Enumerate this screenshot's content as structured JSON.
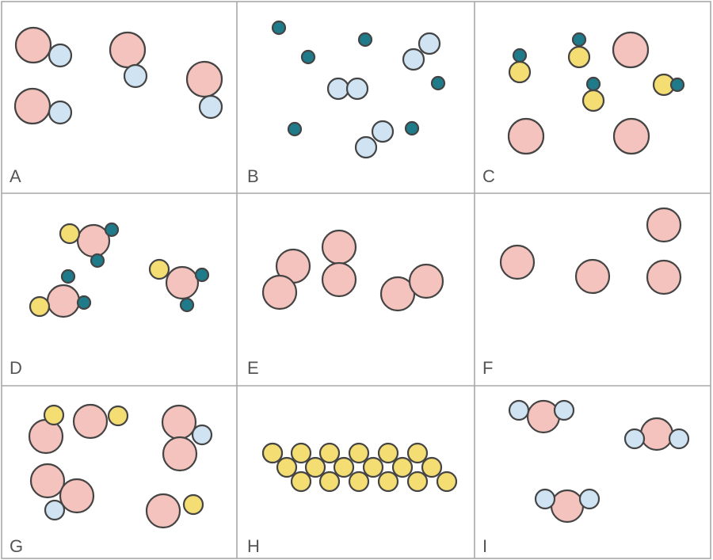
{
  "colors": {
    "pink": "#f5c3bd",
    "lightblue": "#cfe3f2",
    "yellow": "#f4dd72",
    "teal": "#1f7a8a",
    "border": "#a8a8a8",
    "outline": "#444444"
  },
  "panels": [
    {
      "label": "A",
      "particles": [
        {
          "atoms": [
            {
              "type": "pink"
            },
            {
              "type": "lightblue"
            }
          ]
        },
        {
          "atoms": [
            {
              "type": "pink"
            },
            {
              "type": "lightblue"
            }
          ]
        },
        {
          "atoms": [
            {
              "type": "pink"
            },
            {
              "type": "lightblue"
            }
          ]
        },
        {
          "atoms": [
            {
              "type": "pink"
            },
            {
              "type": "lightblue"
            }
          ]
        }
      ]
    },
    {
      "label": "B",
      "particles": [
        {
          "atoms": [
            {
              "type": "teal"
            }
          ]
        },
        {
          "atoms": [
            {
              "type": "teal"
            }
          ]
        },
        {
          "atoms": [
            {
              "type": "teal"
            }
          ]
        },
        {
          "atoms": [
            {
              "type": "teal"
            }
          ]
        },
        {
          "atoms": [
            {
              "type": "teal"
            }
          ]
        },
        {
          "atoms": [
            {
              "type": "teal"
            }
          ]
        },
        {
          "atoms": [
            {
              "type": "lightblue"
            },
            {
              "type": "lightblue"
            }
          ]
        },
        {
          "atoms": [
            {
              "type": "lightblue"
            },
            {
              "type": "lightblue"
            }
          ]
        },
        {
          "atoms": [
            {
              "type": "lightblue"
            },
            {
              "type": "lightblue"
            }
          ]
        }
      ]
    },
    {
      "label": "C",
      "particles": [
        {
          "atoms": [
            {
              "type": "yellow"
            },
            {
              "type": "teal"
            }
          ]
        },
        {
          "atoms": [
            {
              "type": "yellow"
            },
            {
              "type": "teal"
            }
          ]
        },
        {
          "atoms": [
            {
              "type": "yellow"
            },
            {
              "type": "teal"
            }
          ]
        },
        {
          "atoms": [
            {
              "type": "yellow"
            },
            {
              "type": "teal"
            }
          ]
        },
        {
          "atoms": [
            {
              "type": "pink"
            }
          ]
        },
        {
          "atoms": [
            {
              "type": "pink"
            }
          ]
        },
        {
          "atoms": [
            {
              "type": "pink"
            }
          ]
        },
        {
          "atoms": [
            {
              "type": "pink"
            }
          ]
        }
      ]
    },
    {
      "label": "D",
      "particles": [
        {
          "atoms": [
            {
              "type": "pink"
            },
            {
              "type": "yellow"
            },
            {
              "type": "teal"
            },
            {
              "type": "teal"
            }
          ]
        },
        {
          "atoms": [
            {
              "type": "pink"
            },
            {
              "type": "yellow"
            },
            {
              "type": "teal"
            },
            {
              "type": "teal"
            }
          ]
        },
        {
          "atoms": [
            {
              "type": "pink"
            },
            {
              "type": "yellow"
            },
            {
              "type": "teal"
            },
            {
              "type": "teal"
            }
          ]
        }
      ]
    },
    {
      "label": "E",
      "particles": [
        {
          "atoms": [
            {
              "type": "pink"
            },
            {
              "type": "pink"
            }
          ]
        },
        {
          "atoms": [
            {
              "type": "pink"
            },
            {
              "type": "pink"
            }
          ]
        },
        {
          "atoms": [
            {
              "type": "pink"
            },
            {
              "type": "pink"
            }
          ]
        }
      ]
    },
    {
      "label": "F",
      "particles": [
        {
          "atoms": [
            {
              "type": "pink"
            }
          ]
        },
        {
          "atoms": [
            {
              "type": "pink"
            }
          ]
        },
        {
          "atoms": [
            {
              "type": "pink"
            }
          ]
        },
        {
          "atoms": [
            {
              "type": "pink"
            }
          ]
        }
      ]
    },
    {
      "label": "G",
      "particles": [
        {
          "atoms": [
            {
              "type": "pink"
            },
            {
              "type": "yellow"
            }
          ]
        },
        {
          "atoms": [
            {
              "type": "pink"
            },
            {
              "type": "yellow"
            }
          ]
        },
        {
          "atoms": [
            {
              "type": "pink"
            },
            {
              "type": "yellow"
            }
          ]
        },
        {
          "atoms": [
            {
              "type": "pink"
            },
            {
              "type": "pink"
            },
            {
              "type": "lightblue"
            }
          ]
        },
        {
          "atoms": [
            {
              "type": "pink"
            },
            {
              "type": "pink"
            },
            {
              "type": "lightblue"
            }
          ]
        }
      ]
    },
    {
      "label": "H",
      "particles": [
        {
          "atoms": [
            {
              "type": "yellow"
            },
            {
              "type": "yellow"
            },
            {
              "type": "yellow"
            },
            {
              "type": "yellow"
            },
            {
              "type": "yellow"
            },
            {
              "type": "yellow"
            },
            {
              "type": "yellow"
            },
            {
              "type": "yellow"
            },
            {
              "type": "yellow"
            },
            {
              "type": "yellow"
            },
            {
              "type": "yellow"
            },
            {
              "type": "yellow"
            },
            {
              "type": "yellow"
            },
            {
              "type": "yellow"
            },
            {
              "type": "yellow"
            },
            {
              "type": "yellow"
            },
            {
              "type": "yellow"
            },
            {
              "type": "yellow"
            },
            {
              "type": "yellow"
            },
            {
              "type": "yellow"
            },
            {
              "type": "yellow"
            }
          ]
        }
      ]
    },
    {
      "label": "I",
      "particles": [
        {
          "atoms": [
            {
              "type": "pink"
            },
            {
              "type": "lightblue"
            },
            {
              "type": "lightblue"
            }
          ]
        },
        {
          "atoms": [
            {
              "type": "pink"
            },
            {
              "type": "lightblue"
            },
            {
              "type": "lightblue"
            }
          ]
        },
        {
          "atoms": [
            {
              "type": "pink"
            },
            {
              "type": "lightblue"
            },
            {
              "type": "lightblue"
            }
          ]
        }
      ]
    }
  ]
}
